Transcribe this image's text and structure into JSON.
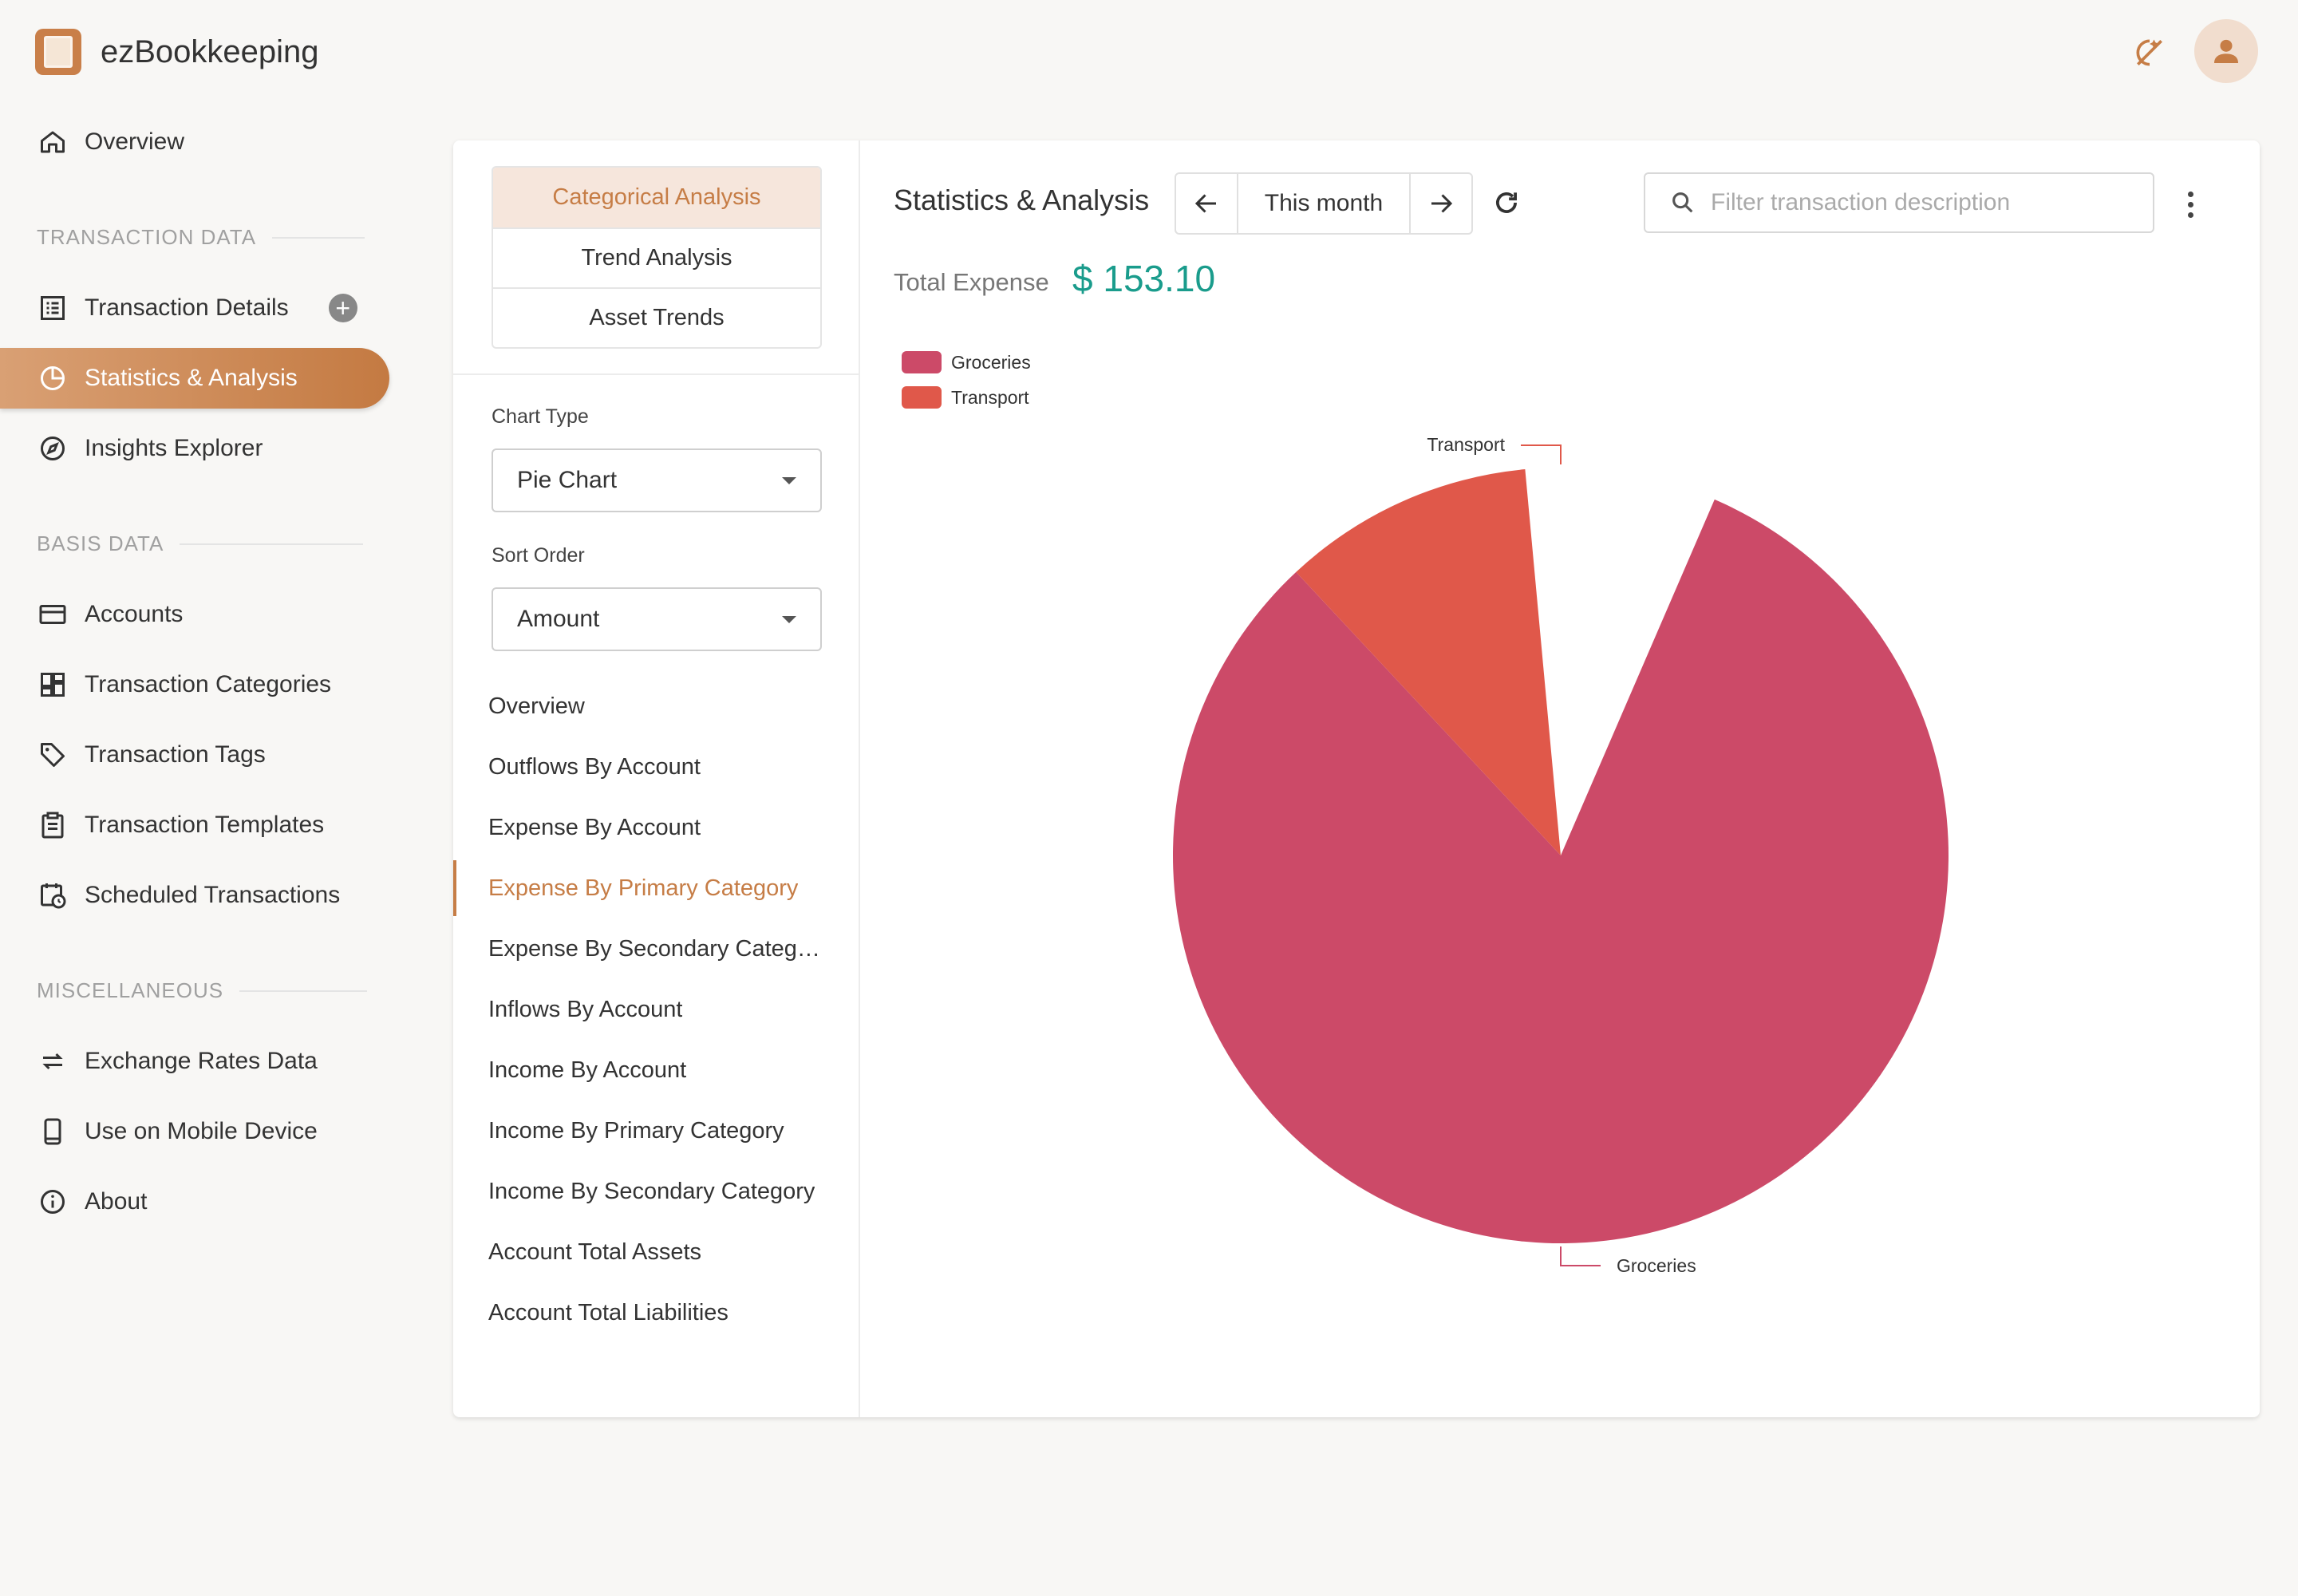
{
  "app": {
    "title": "ezBookkeeping"
  },
  "top": {
    "theme_icon": "theme-toggle-icon",
    "avatar_icon": "user-icon"
  },
  "sidebar": {
    "overview": "Overview",
    "section_transaction": "TRANSACTION DATA",
    "transaction_details": "Transaction Details",
    "statistics": "Statistics & Analysis",
    "insights": "Insights Explorer",
    "section_basis": "BASIS DATA",
    "accounts": "Accounts",
    "categories": "Transaction Categories",
    "tags": "Transaction Tags",
    "templates": "Transaction Templates",
    "scheduled": "Scheduled Transactions",
    "section_misc": "MISCELLANEOUS",
    "exchange": "Exchange Rates Data",
    "mobile": "Use on Mobile Device",
    "about": "About"
  },
  "analysis": {
    "tabs": [
      "Categorical Analysis",
      "Trend Analysis",
      "Asset Trends"
    ],
    "chart_type_label": "Chart Type",
    "chart_type_value": "Pie Chart",
    "sort_order_label": "Sort Order",
    "sort_order_value": "Amount",
    "menu": [
      "Overview",
      "Outflows By Account",
      "Expense By Account",
      "Expense By Primary Category",
      "Expense By Secondary Category",
      "Inflows By Account",
      "Income By Account",
      "Income By Primary Category",
      "Income By Secondary Category",
      "Account Total Assets",
      "Account Total Liabilities"
    ],
    "active_menu_index": 3
  },
  "header": {
    "title": "Statistics & Analysis",
    "date_range": "This month",
    "search_placeholder": "Filter transaction description",
    "total_label": "Total Expense",
    "total_value": "$ 153.10"
  },
  "colors": {
    "accent": "#c67d46",
    "total": "#1a9c8c",
    "groceries": "#cc4a68",
    "transport": "#e0584a"
  },
  "chart_data": {
    "type": "pie",
    "legend_position": "top-left",
    "series": [
      {
        "name": "Groceries",
        "value": 0.886,
        "color": "#cc4a68"
      },
      {
        "name": "Transport",
        "value": 0.114,
        "color": "#e0584a"
      }
    ],
    "labels": [
      "Transport",
      "Groceries"
    ]
  }
}
